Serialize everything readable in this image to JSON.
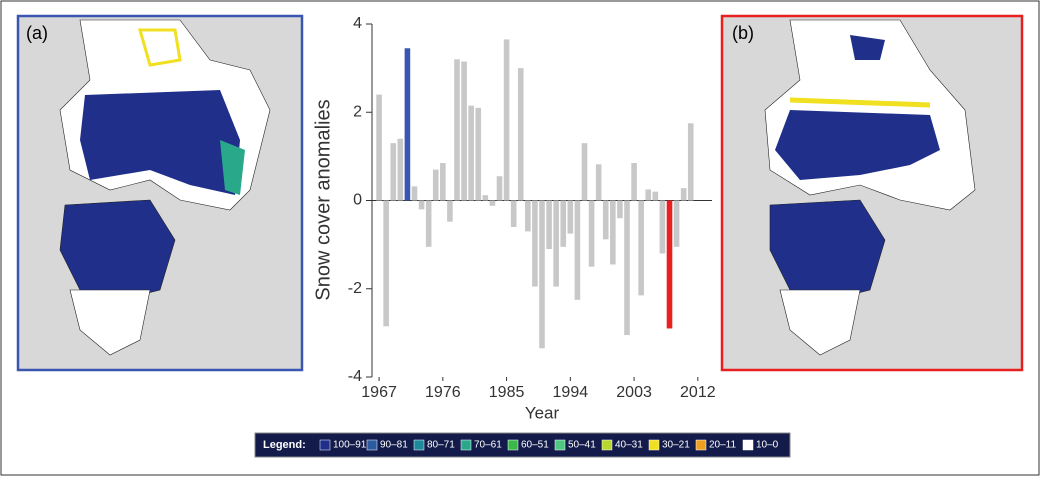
{
  "panels": {
    "a": "(a)",
    "b": "(b)"
  },
  "chart_data": {
    "type": "bar",
    "y_label": "Snow cover anomalies",
    "x_label": "Year",
    "x": [
      1967,
      1968,
      1969,
      1970,
      1971,
      1972,
      1973,
      1974,
      1975,
      1976,
      1977,
      1978,
      1979,
      1980,
      1981,
      1982,
      1983,
      1984,
      1985,
      1986,
      1987,
      1988,
      1989,
      1990,
      1991,
      1992,
      1993,
      1994,
      1995,
      1996,
      1997,
      1998,
      1999,
      2000,
      2001,
      2002,
      2003,
      2004,
      2005,
      2006,
      2007,
      2008,
      2009,
      2010,
      2011
    ],
    "values": [
      2.4,
      -2.85,
      1.3,
      1.4,
      3.45,
      0.32,
      -0.2,
      -1.05,
      0.7,
      0.85,
      -0.48,
      3.2,
      3.15,
      2.15,
      2.1,
      0.12,
      -0.12,
      0.55,
      3.65,
      -0.6,
      3.0,
      -0.7,
      -1.95,
      -3.35,
      -1.1,
      -1.95,
      -1.05,
      -0.75,
      -2.25,
      1.3,
      -1.5,
      0.82,
      -0.88,
      -1.45,
      -0.4,
      -3.05,
      0.85,
      -2.15,
      0.25,
      0.2,
      -1.2,
      -2.9,
      -1.05,
      0.28,
      1.75
    ],
    "colors": [
      "#c8c8c8",
      "#c8c8c8",
      "#c8c8c8",
      "#c8c8c8",
      "#3a56b0",
      "#c8c8c8",
      "#c8c8c8",
      "#c8c8c8",
      "#c8c8c8",
      "#c8c8c8",
      "#c8c8c8",
      "#c8c8c8",
      "#c8c8c8",
      "#c8c8c8",
      "#c8c8c8",
      "#c8c8c8",
      "#c8c8c8",
      "#c8c8c8",
      "#c8c8c8",
      "#c8c8c8",
      "#c8c8c8",
      "#c8c8c8",
      "#c8c8c8",
      "#c8c8c8",
      "#c8c8c8",
      "#c8c8c8",
      "#c8c8c8",
      "#c8c8c8",
      "#c8c8c8",
      "#c8c8c8",
      "#c8c8c8",
      "#c8c8c8",
      "#c8c8c8",
      "#c8c8c8",
      "#c8c8c8",
      "#c8c8c8",
      "#c8c8c8",
      "#c8c8c8",
      "#c8c8c8",
      "#c8c8c8",
      "#c8c8c8",
      "#e82020",
      "#c8c8c8",
      "#c8c8c8",
      "#c8c8c8"
    ],
    "xlim": [
      1966,
      2014
    ],
    "xticks": [
      1967,
      1976,
      1985,
      1994,
      2003,
      2012
    ],
    "ylim": [
      -4,
      4
    ],
    "yticks": [
      -4,
      -2,
      0,
      2,
      4
    ]
  },
  "legend": {
    "title": "Legend:",
    "items": [
      {
        "label": "100–91",
        "color": "#1f2f8a"
      },
      {
        "label": "90–81",
        "color": "#2b5aa0"
      },
      {
        "label": "80–71",
        "color": "#1f8a9a"
      },
      {
        "label": "70–61",
        "color": "#2aa88a"
      },
      {
        "label": "60–51",
        "color": "#3cb84a"
      },
      {
        "label": "50–41",
        "color": "#4ec880"
      },
      {
        "label": "40–31",
        "color": "#b8d830"
      },
      {
        "label": "30–21",
        "color": "#f0e020"
      },
      {
        "label": "20–11",
        "color": "#f0a020"
      },
      {
        "label": "10–0",
        "color": "#ffffff"
      }
    ]
  }
}
